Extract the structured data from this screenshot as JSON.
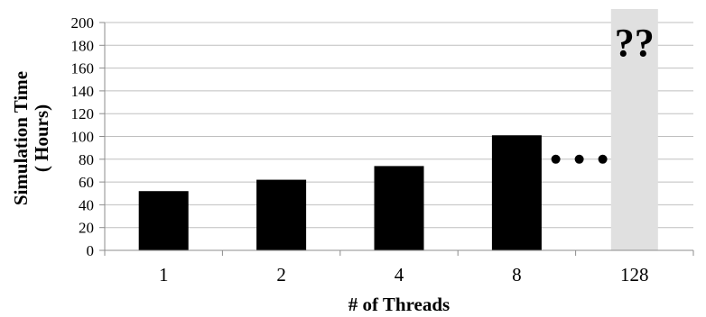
{
  "chart_data": {
    "type": "bar",
    "categories": [
      "1",
      "2",
      "4",
      "8",
      "128"
    ],
    "values": [
      52,
      62,
      74,
      101,
      null
    ],
    "unknown_category": "128",
    "unknown_label": "??",
    "ellipsis_after": "8",
    "xlabel": "# of Threads",
    "ylabel": [
      "Simulation Time",
      "( Hours)"
    ],
    "ylim": [
      0,
      200
    ],
    "yticks": [
      0,
      20,
      40,
      60,
      80,
      100,
      120,
      140,
      160,
      180,
      200
    ],
    "grid": true,
    "colors": {
      "bar": "#000000",
      "unknown_region": "#e0e0e0",
      "grid": "#bfbfbf",
      "axis": "#8c8c8c"
    }
  }
}
